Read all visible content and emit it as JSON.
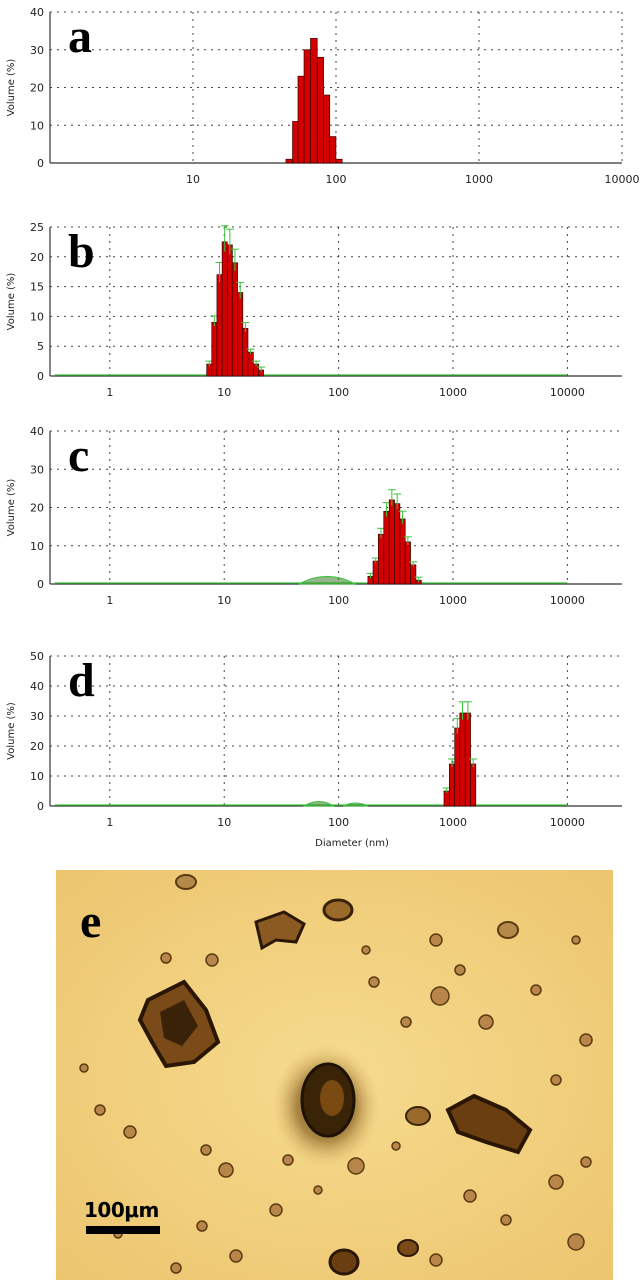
{
  "chart_data": [
    {
      "type": "bar",
      "panel_label": "a",
      "ylabel": "Volume (%)",
      "xlabel": "",
      "xscale": "log",
      "xlim": [
        1,
        10000
      ],
      "ylim": [
        0,
        40
      ],
      "yticks": [
        "0",
        "10",
        "20",
        "30",
        "40"
      ],
      "xticks": [
        "10",
        "100",
        "1000",
        "10000"
      ],
      "grid": true,
      "bars": [
        {
          "x": 47,
          "y": 1
        },
        {
          "x": 52,
          "y": 11
        },
        {
          "x": 57,
          "y": 23
        },
        {
          "x": 63,
          "y": 30
        },
        {
          "x": 70,
          "y": 33
        },
        {
          "x": 78,
          "y": 28
        },
        {
          "x": 86,
          "y": 18
        },
        {
          "x": 95,
          "y": 7
        },
        {
          "x": 105,
          "y": 1
        }
      ]
    },
    {
      "type": "bar",
      "panel_label": "b",
      "ylabel": "Volume (%)",
      "xlabel": "",
      "xscale": "log",
      "xlim": [
        0.3,
        30000
      ],
      "ylim": [
        0,
        25
      ],
      "yticks": [
        "0",
        "5",
        "10",
        "15",
        "20",
        "25"
      ],
      "xticks": [
        "1",
        "10",
        "100",
        "1000",
        "10000"
      ],
      "grid": true,
      "bars": [
        {
          "x": 7.4,
          "y": 2
        },
        {
          "x": 8.2,
          "y": 9
        },
        {
          "x": 9.1,
          "y": 17
        },
        {
          "x": 10.1,
          "y": 22.5
        },
        {
          "x": 11.2,
          "y": 22
        },
        {
          "x": 12.4,
          "y": 19
        },
        {
          "x": 13.8,
          "y": 14
        },
        {
          "x": 15.3,
          "y": 8
        },
        {
          "x": 17,
          "y": 4
        },
        {
          "x": 19,
          "y": 2
        },
        {
          "x": 21,
          "y": 1
        }
      ],
      "baseline_range": [
        0.33,
        10000
      ]
    },
    {
      "type": "bar",
      "panel_label": "c",
      "ylabel": "Volume (%)",
      "xlabel": "",
      "xscale": "log",
      "xlim": [
        0.3,
        30000
      ],
      "ylim": [
        0,
        40
      ],
      "yticks": [
        "0",
        "10",
        "20",
        "30",
        "40"
      ],
      "xticks": [
        "1",
        "10",
        "100",
        "1000",
        "10000"
      ],
      "grid": true,
      "bars": [
        {
          "x": 190,
          "y": 2
        },
        {
          "x": 211,
          "y": 6
        },
        {
          "x": 235,
          "y": 13
        },
        {
          "x": 262,
          "y": 19
        },
        {
          "x": 292,
          "y": 22
        },
        {
          "x": 325,
          "y": 21
        },
        {
          "x": 362,
          "y": 17
        },
        {
          "x": 403,
          "y": 11
        },
        {
          "x": 449,
          "y": 5
        },
        {
          "x": 500,
          "y": 1
        }
      ],
      "bump": {
        "from": 45,
        "to": 140,
        "peak": 2
      },
      "baseline_range": [
        0.33,
        10000
      ]
    },
    {
      "type": "bar",
      "panel_label": "d",
      "ylabel": "Volume (%)",
      "xlabel": "Diameter (nm)",
      "xscale": "log",
      "xlim": [
        0.3,
        30000
      ],
      "ylim": [
        0,
        50
      ],
      "yticks": [
        "0",
        "10",
        "20",
        "30",
        "40",
        "50"
      ],
      "xticks": [
        "1",
        "10",
        "100",
        "1000",
        "10000"
      ],
      "grid": true,
      "bars": [
        {
          "x": 880,
          "y": 5
        },
        {
          "x": 980,
          "y": 14
        },
        {
          "x": 1090,
          "y": 26
        },
        {
          "x": 1210,
          "y": 31
        },
        {
          "x": 1350,
          "y": 31
        },
        {
          "x": 1500,
          "y": 14
        }
      ],
      "bump": {
        "from": 50,
        "to": 90,
        "peak": 1.5
      },
      "bump2": {
        "from": 110,
        "to": 180,
        "peak": 1
      },
      "baseline_range": [
        0.33,
        10000
      ]
    }
  ],
  "micrograph": {
    "panel_label": "e",
    "scale_label": "100μm",
    "background": "#f2d27e"
  },
  "colors": {
    "bar_fill": "#d40000",
    "error_bar": "#3cc23c"
  }
}
